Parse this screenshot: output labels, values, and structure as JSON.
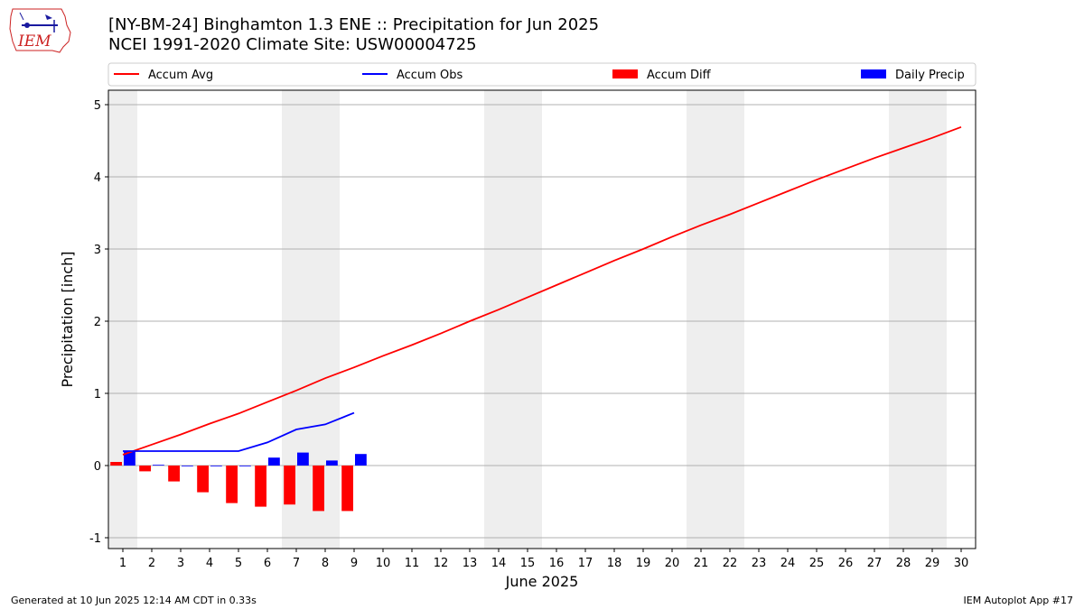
{
  "logo": {
    "text": "IEM"
  },
  "header": {
    "title_line1": "[NY-BM-24] Binghamton 1.3 ENE :: Precipitation for Jun 2025",
    "title_line2": "NCEI 1991-2020 Climate Site: USW00004725"
  },
  "footer": {
    "left": "Generated at 10 Jun 2025 12:14 AM CDT in 0.33s",
    "right": "IEM Autoplot App #17"
  },
  "colors": {
    "accum_avg": "#ff0000",
    "accum_obs": "#0000ff",
    "accum_diff": "#ff0000",
    "daily_precip": "#0000ff",
    "weekend_shade": "#eeeeee",
    "grid": "#b0b0b0"
  },
  "chart_data": {
    "type": "bar",
    "xlabel": "June 2025",
    "ylabel": "Precipitation [inch]",
    "xlim": [
      0.5,
      30.5
    ],
    "ylim": [
      -1.15,
      5.2
    ],
    "x_ticks": [
      1,
      2,
      3,
      4,
      5,
      6,
      7,
      8,
      9,
      10,
      11,
      12,
      13,
      14,
      15,
      16,
      17,
      18,
      19,
      20,
      21,
      22,
      23,
      24,
      25,
      26,
      27,
      28,
      29,
      30
    ],
    "y_ticks": [
      -1,
      0,
      1,
      2,
      3,
      4,
      5
    ],
    "grid": "horizontal",
    "legend_position": "top, above plot",
    "shaded_weekends": [
      [
        1,
        1
      ],
      [
        7,
        8
      ],
      [
        14,
        15
      ],
      [
        21,
        22
      ],
      [
        28,
        29
      ]
    ],
    "series": [
      {
        "name": "Accum Avg",
        "kind": "line",
        "color": "#ff0000",
        "x": [
          1,
          2,
          3,
          4,
          5,
          6,
          7,
          8,
          9,
          10,
          11,
          12,
          13,
          14,
          15,
          16,
          17,
          18,
          19,
          20,
          21,
          22,
          23,
          24,
          25,
          26,
          27,
          28,
          29,
          30
        ],
        "values": [
          0.15,
          0.29,
          0.43,
          0.58,
          0.72,
          0.88,
          1.04,
          1.21,
          1.36,
          1.52,
          1.67,
          1.83,
          2.0,
          2.16,
          2.33,
          2.5,
          2.67,
          2.84,
          3.0,
          3.17,
          3.33,
          3.48,
          3.64,
          3.8,
          3.96,
          4.11,
          4.26,
          4.4,
          4.54,
          4.69
        ]
      },
      {
        "name": "Accum Obs",
        "kind": "line",
        "color": "#0000ff",
        "x": [
          1,
          2,
          3,
          4,
          5,
          6,
          7,
          8,
          9
        ],
        "values": [
          0.2,
          0.2,
          0.2,
          0.2,
          0.2,
          0.32,
          0.5,
          0.57,
          0.73
        ]
      },
      {
        "name": "Accum Diff",
        "kind": "bar",
        "color": "#ff0000",
        "x": [
          1,
          2,
          3,
          4,
          5,
          6,
          7,
          8,
          9
        ],
        "values": [
          0.05,
          -0.08,
          -0.22,
          -0.37,
          -0.52,
          -0.57,
          -0.54,
          -0.63,
          -0.63
        ]
      },
      {
        "name": "Daily Precip",
        "kind": "bar",
        "color": "#0000ff",
        "x": [
          1,
          2,
          3,
          4,
          5,
          6,
          7,
          8,
          9
        ],
        "values": [
          0.2,
          0.01,
          0.0,
          0.0,
          0.0,
          0.11,
          0.18,
          0.07,
          0.16
        ]
      }
    ]
  }
}
